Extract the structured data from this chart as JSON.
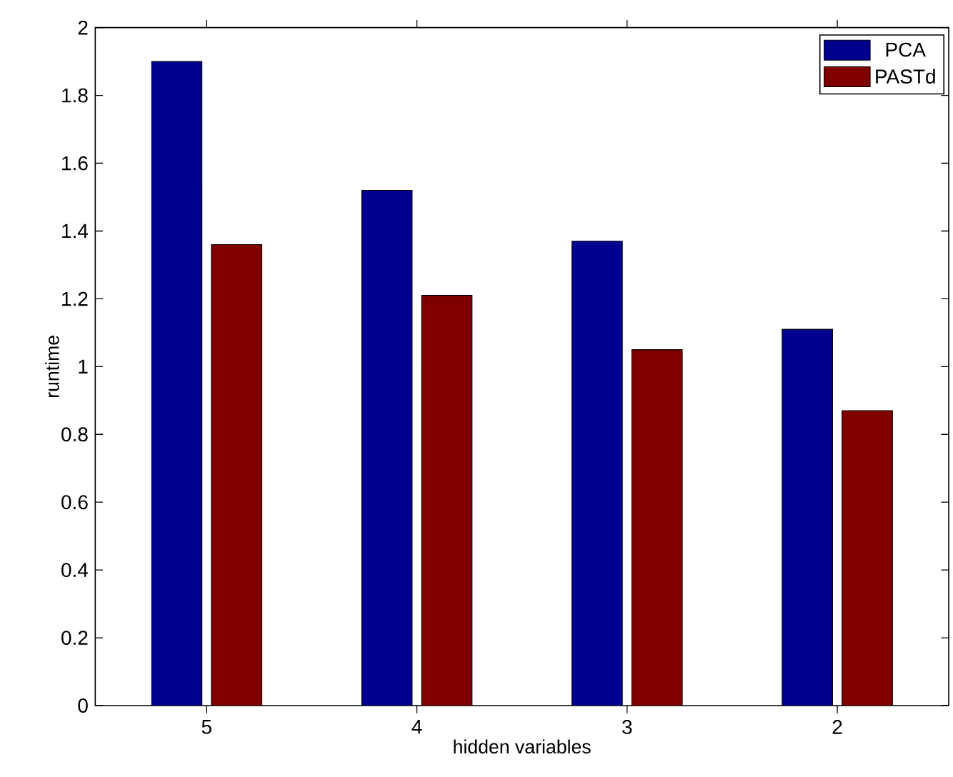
{
  "chart_data": {
    "type": "bar",
    "xlabel": "hidden variables",
    "ylabel": "runtime",
    "categories": [
      "5",
      "4",
      "3",
      "2"
    ],
    "series": [
      {
        "name": "PCA",
        "color": "#00008f",
        "values": [
          1.9,
          1.52,
          1.37,
          1.11
        ]
      },
      {
        "name": "PASTd",
        "color": "#800000",
        "values": [
          1.36,
          1.21,
          1.05,
          0.87
        ]
      }
    ],
    "ylim": [
      0,
      2
    ],
    "yticks": [
      0,
      0.2,
      0.4,
      0.6,
      0.8,
      1,
      1.2,
      1.4,
      1.6,
      1.8,
      2
    ],
    "legend": "top right",
    "grid": false
  }
}
